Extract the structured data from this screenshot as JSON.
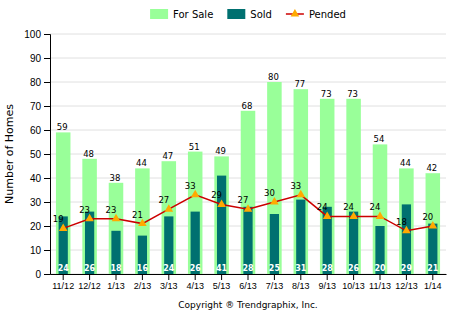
{
  "chart_data": {
    "type": "bar",
    "categories": [
      "11/12",
      "12/12",
      "1/13",
      "2/13",
      "3/13",
      "4/13",
      "5/13",
      "6/13",
      "7/13",
      "8/13",
      "9/13",
      "10/13",
      "11/13",
      "12/13",
      "1/14"
    ],
    "series": [
      {
        "name": "For Sale",
        "type": "bar",
        "color": "#99ff99",
        "values": [
          59,
          48,
          38,
          44,
          47,
          51,
          49,
          68,
          80,
          77,
          73,
          73,
          54,
          44,
          42
        ]
      },
      {
        "name": "Sold",
        "type": "bar",
        "color": "#007070",
        "values": [
          24,
          26,
          18,
          16,
          24,
          26,
          41,
          28,
          25,
          31,
          28,
          26,
          20,
          29,
          21
        ]
      },
      {
        "name": "Pended",
        "type": "line",
        "color": "#cc0000",
        "marker": "triangle",
        "values": [
          19,
          23,
          23,
          21,
          27,
          33,
          29,
          27,
          30,
          33,
          24,
          24,
          24,
          18,
          20
        ]
      }
    ],
    "xlabel": "Copyright ® Trendgraphix, Inc.",
    "ylabel": "Number of Homes",
    "ylim": [
      0,
      100
    ],
    "yticks": [
      0,
      10,
      20,
      30,
      40,
      50,
      60,
      70,
      80,
      90,
      100
    ],
    "grid": true,
    "legend": "top",
    "data_labels": true
  }
}
